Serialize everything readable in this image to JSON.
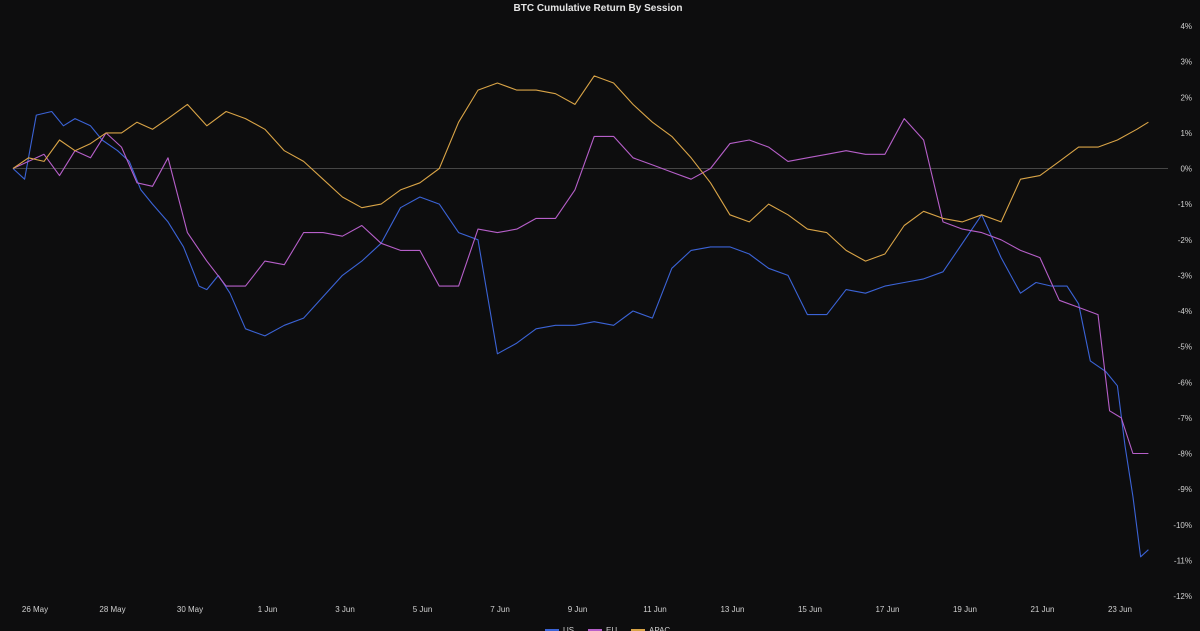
{
  "chart_data": {
    "type": "line",
    "title": "BTC Cumulative Return By Session",
    "xlabel": "",
    "ylabel": "",
    "ylim": [
      -12,
      4
    ],
    "y_ticks": [
      "4%",
      "3%",
      "2%",
      "1%",
      "0%",
      "-1%",
      "-2%",
      "-3%",
      "-4%",
      "-5%",
      "-6%",
      "-7%",
      "-8%",
      "-9%",
      "-10%",
      "-11%",
      "-12%"
    ],
    "x_ticks": [
      "26 May",
      "28 May",
      "30 May",
      "1 Jun",
      "3 Jun",
      "5 Jun",
      "7 Jun",
      "9 Jun",
      "11 Jun",
      "13 Jun",
      "15 Jun",
      "17 Jun",
      "19 Jun",
      "21 Jun",
      "23 Jun"
    ],
    "x_range_days": [
      0,
      29.6
    ],
    "legend_position": "bottom",
    "grid": false,
    "zero_line": true,
    "series": [
      {
        "name": "US",
        "color": "#3b63d6",
        "x": [
          0,
          0.3,
          0.6,
          1.0,
          1.3,
          1.6,
          2.0,
          2.3,
          2.7,
          3.0,
          3.3,
          3.6,
          4.0,
          4.4,
          4.8,
          5.0,
          5.3,
          5.6,
          6.0,
          6.5,
          7.0,
          7.5,
          8.0,
          8.5,
          9.0,
          9.5,
          10.0,
          10.5,
          11.0,
          11.5,
          12.0,
          12.5,
          13.0,
          13.5,
          14.0,
          14.5,
          15.0,
          15.5,
          16.0,
          16.5,
          17.0,
          17.5,
          18.0,
          18.5,
          19.0,
          19.5,
          20.0,
          20.5,
          21.0,
          21.5,
          22.0,
          22.5,
          23.0,
          23.5,
          24.0,
          24.5,
          25.0,
          25.5,
          26.0,
          26.4,
          26.8,
          27.2,
          27.5,
          27.8,
          28.2,
          28.5,
          28.7,
          28.9,
          29.1,
          29.3
        ],
        "y": [
          0.0,
          -0.3,
          1.5,
          1.6,
          1.2,
          1.4,
          1.2,
          0.8,
          0.5,
          0.2,
          -0.6,
          -1.0,
          -1.5,
          -2.2,
          -3.3,
          -3.4,
          -3.0,
          -3.5,
          -4.5,
          -4.7,
          -4.4,
          -4.2,
          -3.6,
          -3.0,
          -2.6,
          -2.1,
          -1.1,
          -0.8,
          -1.0,
          -1.8,
          -2.0,
          -5.2,
          -4.9,
          -4.5,
          -4.4,
          -4.4,
          -4.3,
          -4.4,
          -4.0,
          -4.2,
          -2.8,
          -2.3,
          -2.2,
          -2.2,
          -2.4,
          -2.8,
          -3.0,
          -4.1,
          -4.1,
          -3.4,
          -3.5,
          -3.3,
          -3.2,
          -3.1,
          -2.9,
          -2.1,
          -1.3,
          -2.5,
          -3.5,
          -3.2,
          -3.3,
          -3.3,
          -3.8,
          -5.4,
          -5.7,
          -6.1,
          -7.8,
          -9.2,
          -10.9,
          -10.7
        ]
      },
      {
        "name": "EU",
        "color": "#b65fc9",
        "x": [
          0,
          0.4,
          0.8,
          1.2,
          1.6,
          2.0,
          2.4,
          2.8,
          3.2,
          3.6,
          4.0,
          4.5,
          5.0,
          5.5,
          6.0,
          6.5,
          7.0,
          7.5,
          8.0,
          8.5,
          9.0,
          9.5,
          10.0,
          10.5,
          11.0,
          11.5,
          12.0,
          12.5,
          13.0,
          13.5,
          14.0,
          14.5,
          15.0,
          15.5,
          16.0,
          16.5,
          17.0,
          17.5,
          18.0,
          18.5,
          19.0,
          19.5,
          20.0,
          20.5,
          21.0,
          21.5,
          22.0,
          22.5,
          23.0,
          23.5,
          24.0,
          24.5,
          25.0,
          25.5,
          26.0,
          26.5,
          27.0,
          27.5,
          28.0,
          28.3,
          28.6,
          28.9,
          29.3
        ],
        "y": [
          0.0,
          0.2,
          0.4,
          -0.2,
          0.5,
          0.3,
          1.0,
          0.6,
          -0.4,
          -0.5,
          0.3,
          -1.8,
          -2.6,
          -3.3,
          -3.3,
          -2.6,
          -2.7,
          -1.8,
          -1.8,
          -1.9,
          -1.6,
          -2.1,
          -2.3,
          -2.3,
          -3.3,
          -3.3,
          -1.7,
          -1.8,
          -1.7,
          -1.4,
          -1.4,
          -0.6,
          0.9,
          0.9,
          0.3,
          0.1,
          -0.1,
          -0.3,
          0.0,
          0.7,
          0.8,
          0.6,
          0.2,
          0.3,
          0.4,
          0.5,
          0.4,
          0.4,
          1.4,
          0.8,
          -1.5,
          -1.7,
          -1.8,
          -2.0,
          -2.3,
          -2.5,
          -3.7,
          -3.9,
          -4.1,
          -6.8,
          -7.0,
          -8.0,
          -8.0
        ]
      },
      {
        "name": "APAC",
        "color": "#d9a447",
        "x": [
          0,
          0.4,
          0.8,
          1.2,
          1.6,
          2.0,
          2.4,
          2.8,
          3.2,
          3.6,
          4.0,
          4.5,
          5.0,
          5.5,
          6.0,
          6.5,
          7.0,
          7.5,
          8.0,
          8.5,
          9.0,
          9.5,
          10.0,
          10.5,
          11.0,
          11.5,
          12.0,
          12.5,
          13.0,
          13.5,
          14.0,
          14.5,
          15.0,
          15.5,
          16.0,
          16.5,
          17.0,
          17.5,
          18.0,
          18.5,
          19.0,
          19.5,
          20.0,
          20.5,
          21.0,
          21.5,
          22.0,
          22.5,
          23.0,
          23.5,
          24.0,
          24.5,
          25.0,
          25.5,
          26.0,
          26.5,
          27.0,
          27.5,
          28.0,
          28.5,
          29.0,
          29.3
        ],
        "y": [
          0.0,
          0.3,
          0.2,
          0.8,
          0.5,
          0.7,
          1.0,
          1.0,
          1.3,
          1.1,
          1.4,
          1.8,
          1.2,
          1.6,
          1.4,
          1.1,
          0.5,
          0.2,
          -0.3,
          -0.8,
          -1.1,
          -1.0,
          -0.6,
          -0.4,
          0.0,
          1.3,
          2.2,
          2.4,
          2.2,
          2.2,
          2.1,
          1.8,
          2.6,
          2.4,
          1.8,
          1.3,
          0.9,
          0.3,
          -0.4,
          -1.3,
          -1.5,
          -1.0,
          -1.3,
          -1.7,
          -1.8,
          -2.3,
          -2.6,
          -2.4,
          -1.6,
          -1.2,
          -1.4,
          -1.5,
          -1.3,
          -1.5,
          -0.3,
          -0.2,
          0.2,
          0.6,
          0.6,
          0.8,
          1.1,
          1.3
        ]
      }
    ]
  }
}
